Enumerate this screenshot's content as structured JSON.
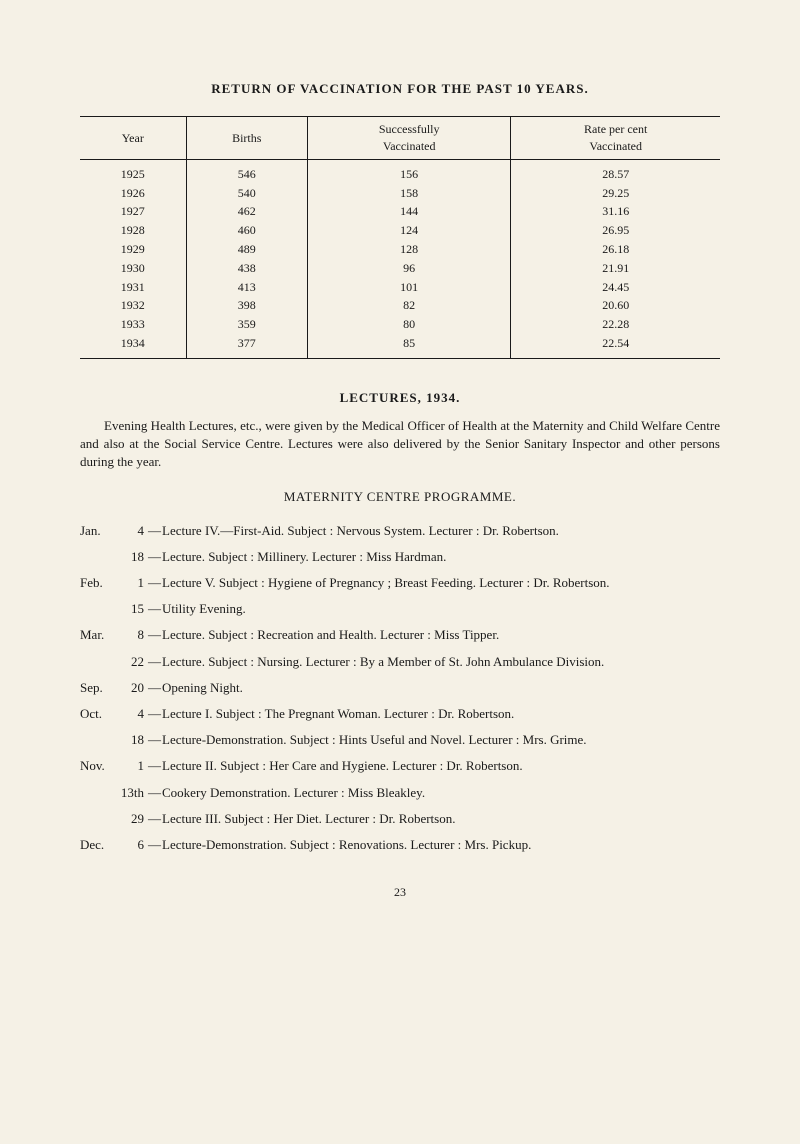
{
  "heading": "RETURN OF VACCINATION FOR THE PAST 10 YEARS.",
  "table": {
    "headers": [
      "Year",
      "Births",
      "Successfully\nVaccinated",
      "Rate per cent\nVaccinated"
    ],
    "rows": [
      [
        "1925",
        "546",
        "156",
        "28.57"
      ],
      [
        "1926",
        "540",
        "158",
        "29.25"
      ],
      [
        "1927",
        "462",
        "144",
        "31.16"
      ],
      [
        "1928",
        "460",
        "124",
        "26.95"
      ],
      [
        "1929",
        "489",
        "128",
        "26.18"
      ],
      [
        "1930",
        "438",
        "96",
        "21.91"
      ],
      [
        "1931",
        "413",
        "101",
        "24.45"
      ],
      [
        "1932",
        "398",
        "82",
        "20.60"
      ],
      [
        "1933",
        "359",
        "80",
        "22.28"
      ],
      [
        "1934",
        "377",
        "85",
        "22.54"
      ]
    ]
  },
  "lectures_heading": "LECTURES, 1934.",
  "lectures_intro": "Evening Health Lectures, etc., were given by the Medical Officer of Health at the Maternity and Child Welfare Centre and also at the Social Service Centre. Lectures were also delivered by the Senior Sanitary Inspector and other persons during the year.",
  "programme_heading": "MATERNITY CENTRE PROGRAMME.",
  "entries": [
    {
      "month": "Jan.",
      "day": "4",
      "text": "Lecture IV.—First-Aid. Subject : Nervous System. Lecturer : Dr. Robertson."
    },
    {
      "month": "",
      "day": "18",
      "text": "Lecture. Subject : Millinery. Lecturer : Miss Hardman."
    },
    {
      "month": "Feb.",
      "day": "1",
      "text": "Lecture V. Subject : Hygiene of Pregnancy ; Breast Feeding. Lecturer : Dr. Robertson."
    },
    {
      "month": "",
      "day": "15",
      "text": "Utility Evening."
    },
    {
      "month": "Mar.",
      "day": "8",
      "text": "Lecture. Subject : Recreation and Health. Lecturer : Miss Tipper."
    },
    {
      "month": "",
      "day": "22",
      "text": "Lecture. Subject : Nursing. Lecturer : By a Member of St. John Ambulance Division."
    },
    {
      "month": "Sep.",
      "day": "20",
      "text": "Opening Night."
    },
    {
      "month": "Oct.",
      "day": "4",
      "text": "Lecture I. Subject : The Pregnant Woman. Lecturer : Dr. Robertson."
    },
    {
      "month": "",
      "day": "18",
      "text": "Lecture-Demonstration. Subject : Hints Useful and Novel. Lecturer : Mrs. Grime."
    },
    {
      "month": "Nov.",
      "day": "1",
      "text": "Lecture II. Subject : Her Care and Hygiene. Lecturer : Dr. Robertson."
    },
    {
      "month": "",
      "day": "13th",
      "text": "Cookery Demonstration. Lecturer : Miss Bleakley."
    },
    {
      "month": "",
      "day": "29",
      "text": "Lecture III. Subject : Her Diet. Lecturer : Dr. Robertson."
    },
    {
      "month": "Dec.",
      "day": "6",
      "text": "Lecture-Demonstration. Subject : Renovations. Lecturer : Mrs. Pickup."
    }
  ],
  "page_number": "23"
}
